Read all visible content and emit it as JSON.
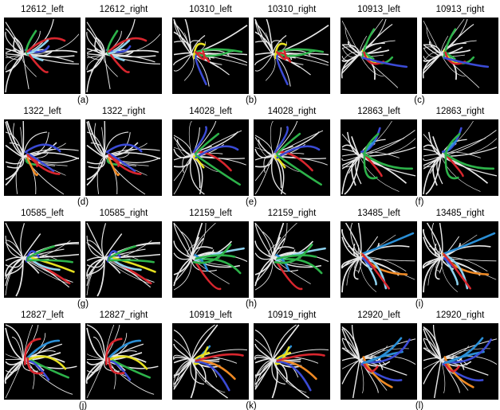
{
  "panels": [
    {
      "left_title": "12612_left",
      "right_title": "12612_right",
      "caption": "(a)"
    },
    {
      "left_title": "10310_left",
      "right_title": "10310_right",
      "caption": "(b)"
    },
    {
      "left_title": "10913_left",
      "right_title": "10913_right",
      "caption": "(c)"
    },
    {
      "left_title": "1322_left",
      "right_title": "1322_right",
      "caption": "(d)"
    },
    {
      "left_title": "14028_left",
      "right_title": "14028_right",
      "caption": "(e)"
    },
    {
      "left_title": "12863_left",
      "right_title": "12863_right",
      "caption": "(f)"
    },
    {
      "left_title": "10585_left",
      "right_title": "10585_right",
      "caption": "(g)"
    },
    {
      "left_title": "12159_left",
      "right_title": "12159_right",
      "caption": "(h)"
    },
    {
      "left_title": "13485_left",
      "right_title": "13485_right",
      "caption": "(i)"
    },
    {
      "left_title": "12827_left",
      "right_title": "12827_right",
      "caption": "(j)"
    },
    {
      "left_title": "10919_left",
      "right_title": "10919_right",
      "caption": "(k)"
    },
    {
      "left_title": "12920_left",
      "right_title": "12920_right",
      "caption": "(l)"
    }
  ]
}
